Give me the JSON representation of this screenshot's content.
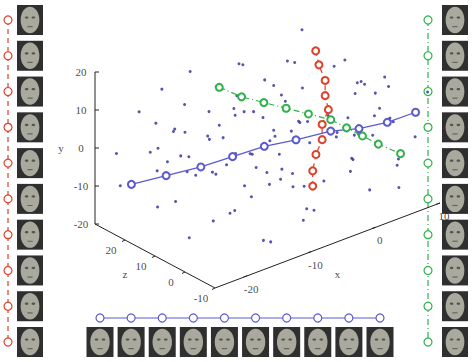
{
  "chart_data": {
    "type": "scatter3d",
    "x_label": "x",
    "y_label": "y",
    "z_label": "z",
    "xlim": [
      -25,
      10
    ],
    "ylim": [
      -20,
      20
    ],
    "zlim": [
      -10,
      30
    ],
    "xticks": [
      -20,
      -10,
      0,
      10
    ],
    "yticks": [
      -20,
      -10,
      0,
      10,
      20
    ],
    "zticks": [
      -10,
      0,
      10,
      20
    ],
    "series": [
      {
        "color": "#2b2b9a",
        "marker": "dot",
        "values": [
          [
            -22,
            2,
            18
          ],
          [
            -20,
            -5,
            20
          ],
          [
            -18,
            6,
            15
          ],
          [
            -23,
            -8,
            22
          ],
          [
            -21,
            10,
            12
          ],
          [
            -19,
            -12,
            16
          ],
          [
            -17,
            3,
            21
          ],
          [
            -24,
            5,
            8
          ],
          [
            -16,
            -3,
            18
          ],
          [
            -15,
            8,
            10
          ],
          [
            -14,
            -10,
            20
          ],
          [
            -13,
            12,
            6
          ],
          [
            -12,
            -6,
            14
          ],
          [
            -11,
            4,
            22
          ],
          [
            -10,
            -14,
            10
          ],
          [
            -9,
            9,
            17
          ],
          [
            -8,
            -2,
            5
          ],
          [
            -7,
            14,
            12
          ],
          [
            -6,
            -9,
            19
          ],
          [
            -5,
            6,
            2
          ],
          [
            -4,
            -4,
            15
          ],
          [
            -3,
            11,
            8
          ],
          [
            -2,
            -12,
            3
          ],
          [
            -1,
            2,
            18
          ],
          [
            0,
            -7,
            12
          ],
          [
            1,
            15,
            6
          ],
          [
            2,
            -1,
            0
          ],
          [
            3,
            7,
            14
          ],
          [
            4,
            -15,
            7
          ],
          [
            5,
            3,
            -4
          ],
          [
            6,
            -8,
            10
          ],
          [
            7,
            10,
            2
          ],
          [
            8,
            -3,
            -6
          ],
          [
            9,
            5,
            5
          ],
          [
            -22,
            -15,
            5
          ],
          [
            -20,
            13,
            -2
          ],
          [
            -18,
            -9,
            0
          ],
          [
            -16,
            16,
            3
          ],
          [
            -14,
            -17,
            -5
          ],
          [
            -12,
            1,
            -8
          ],
          [
            -10,
            17,
            0
          ],
          [
            -8,
            -16,
            -3
          ],
          [
            -6,
            12,
            -7
          ],
          [
            -4,
            -18,
            2
          ],
          [
            -2,
            8,
            -5
          ],
          [
            0,
            -11,
            -8
          ],
          [
            2,
            13,
            -2
          ],
          [
            4,
            -5,
            -9
          ],
          [
            6,
            1,
            -3
          ],
          [
            8,
            -13,
            0
          ],
          [
            -24,
            0,
            25
          ],
          [
            -22,
            -11,
            28
          ],
          [
            -20,
            8,
            26
          ],
          [
            -18,
            -2,
            24
          ],
          [
            -16,
            11,
            27
          ],
          [
            -14,
            -7,
            25
          ],
          [
            -12,
            4,
            28
          ],
          [
            -10,
            -13,
            23
          ],
          [
            -8,
            7,
            26
          ],
          [
            -6,
            -1,
            24
          ],
          [
            -4,
            10,
            27
          ],
          [
            -2,
            -9,
            21
          ],
          [
            0,
            3,
            24
          ],
          [
            2,
            -6,
            20
          ],
          [
            4,
            9,
            18
          ],
          [
            6,
            -11,
            16
          ],
          [
            8,
            0,
            14
          ],
          [
            -23,
            7,
            -6
          ],
          [
            -21,
            -3,
            -8
          ],
          [
            -19,
            9,
            -4
          ],
          [
            -17,
            -13,
            -9
          ],
          [
            -15,
            5,
            -1
          ],
          [
            -13,
            -1,
            2
          ],
          [
            -11,
            10,
            4
          ],
          [
            -9,
            -7,
            7
          ],
          [
            -7,
            2,
            9
          ],
          [
            -5,
            -13,
            11
          ],
          [
            -3,
            16,
            13
          ],
          [
            -1,
            -5,
            16
          ],
          [
            1,
            6,
            9
          ],
          [
            3,
            -10,
            4
          ],
          [
            5,
            12,
            11
          ],
          [
            7,
            -7,
            6
          ],
          [
            9,
            -2,
            8
          ],
          [
            -15,
            -18,
            12
          ],
          [
            -9,
            18,
            15
          ],
          [
            -3,
            -19,
            19
          ],
          [
            3,
            17,
            21
          ],
          [
            7,
            -16,
            13
          ],
          [
            -19,
            -16,
            22
          ],
          [
            -13,
            15,
            24
          ],
          [
            -7,
            -14,
            -2
          ],
          [
            -1,
            17,
            -6
          ],
          [
            5,
            -14,
            -7
          ],
          [
            9,
            9,
            -8
          ],
          [
            -23,
            12,
            14
          ],
          [
            -11,
            -4,
            -6
          ],
          [
            1,
            -2,
            5
          ],
          [
            -5,
            1,
            20
          ],
          [
            -17,
            6,
            9
          ],
          [
            6,
            6,
            3
          ],
          [
            -2,
            0,
            11
          ],
          [
            -9,
            -4,
            2
          ],
          [
            -14,
            2,
            16
          ],
          [
            4,
            3,
            -1
          ],
          [
            -20,
            -1,
            10
          ],
          [
            0,
            12,
            17
          ],
          [
            -6,
            -10,
            1
          ],
          [
            8,
            4,
            12
          ],
          [
            -12,
            -9,
            8
          ]
        ]
      },
      {
        "color": "#e0402a",
        "marker": "circle",
        "line_style": "dashed",
        "values": [
          [
            0,
            18,
            10
          ],
          [
            0.5,
            14,
            10
          ],
          [
            1,
            10,
            9
          ],
          [
            1,
            6,
            9
          ],
          [
            1.5,
            2,
            9
          ],
          [
            1,
            -2,
            10
          ],
          [
            1,
            -6,
            10
          ],
          [
            0.5,
            -10,
            11
          ],
          [
            0,
            -14,
            11
          ],
          [
            0,
            -18,
            11
          ]
        ]
      },
      {
        "color": "#2fb24a",
        "marker": "circle",
        "line_style": "dashdot",
        "values": [
          [
            -15,
            18,
            10
          ],
          [
            -12,
            14,
            9
          ],
          [
            -9,
            11,
            8
          ],
          [
            -6,
            8,
            7
          ],
          [
            -3,
            5,
            6
          ],
          [
            0,
            2,
            5
          ],
          [
            2,
            -1,
            4
          ],
          [
            4,
            -4,
            3
          ],
          [
            6,
            -7,
            2
          ],
          [
            9,
            -11,
            1
          ]
        ]
      },
      {
        "color": "#5a5ad0",
        "marker": "circle",
        "line_style": "solid",
        "values": [
          [
            -24,
            -6,
            20
          ],
          [
            -20,
            -5,
            17
          ],
          [
            -16,
            -4,
            14
          ],
          [
            -12,
            -3,
            12
          ],
          [
            -8,
            -2,
            10
          ],
          [
            -4,
            -2,
            8
          ],
          [
            0,
            -1,
            5
          ],
          [
            3,
            -1,
            2
          ],
          [
            6,
            0,
            -1
          ],
          [
            9,
            2,
            -4
          ]
        ]
      }
    ]
  }
}
